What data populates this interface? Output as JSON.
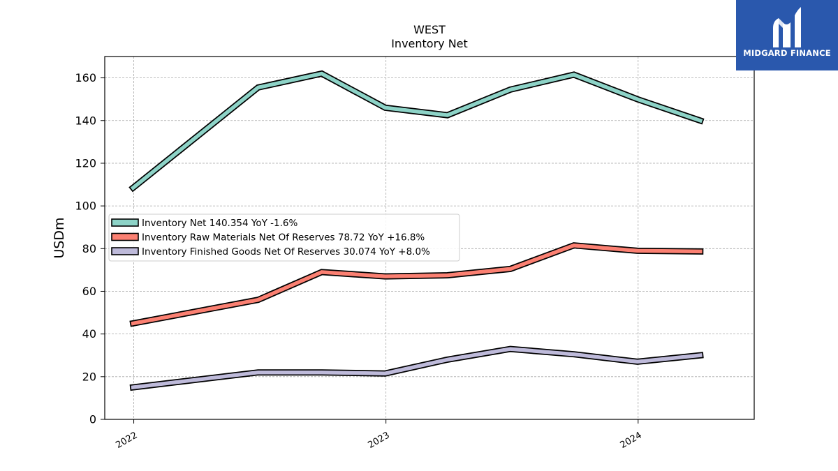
{
  "brand": {
    "name": "MIDGARD FINANCE",
    "logo_color": "#2a58ad"
  },
  "chart_data": {
    "type": "line",
    "title": "WEST",
    "subtitle": "Inventory Net",
    "ylabel": "USDm",
    "xlabel": "",
    "ylim": [
      0,
      170
    ],
    "yticks": [
      0,
      20,
      40,
      60,
      80,
      100,
      120,
      140,
      160
    ],
    "xlim": [
      "2021-11-20",
      "2024-06-17"
    ],
    "xticks": [
      "2022-01-01",
      "2023-01-01",
      "2024-01-01"
    ],
    "xtick_labels": [
      "2022",
      "2023",
      "2024"
    ],
    "grid": true,
    "legend_position": "center-left",
    "x": [
      "2021-12-31",
      "2022-06-30",
      "2022-09-30",
      "2022-12-31",
      "2023-03-31",
      "2023-06-30",
      "2023-09-30",
      "2023-12-31",
      "2024-03-31"
    ],
    "series": [
      {
        "name": "Inventory Net  140.354 YoY -1.6%",
        "color": "#8dd3c7",
        "values": [
          108.5,
          155.5,
          162.0,
          146.0,
          142.5,
          154.5,
          161.5,
          150.0,
          140.0
        ]
      },
      {
        "name": "Inventory Raw Materials Net Of Reserves  78.72 YoY +16.8%",
        "color": "#fb8072",
        "values": [
          45.0,
          56.0,
          69.0,
          67.0,
          67.5,
          70.5,
          81.5,
          79.0,
          78.7
        ]
      },
      {
        "name": "Inventory Finished Goods Net Of Reserves  30.074 YoY +8.0%",
        "color": "#bebada",
        "values": [
          15.0,
          22.0,
          22.0,
          21.5,
          28.0,
          33.0,
          30.5,
          27.0,
          30.0
        ]
      }
    ]
  }
}
